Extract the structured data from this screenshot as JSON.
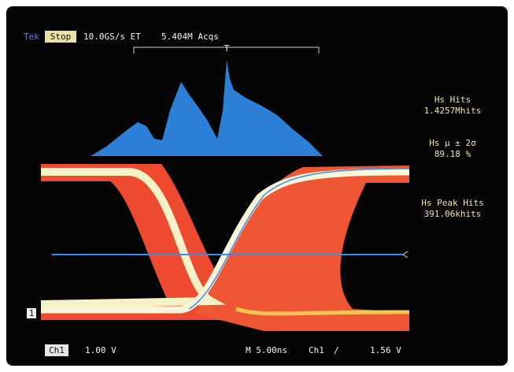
{
  "status": {
    "brand": "Tek",
    "state": "Stop",
    "sample_rate": "10.0GS/s ET",
    "acquisitions": "5.404M Acqs",
    "trigger_marker": "T"
  },
  "readouts": [
    {
      "label": "Hs Hits",
      "value": "1.4257Mhits"
    },
    {
      "label": "Hs μ ± 2σ",
      "value": "89.18 %"
    },
    {
      "label": "Hs Peak Hits",
      "value": "391.06khits"
    }
  ],
  "channel_marker": "1",
  "footer": {
    "channel": "Ch1",
    "scale": "1.00 V",
    "timebase": "M 5.00ns",
    "trigger_channel": "Ch1",
    "trigger_slope": "∕",
    "trigger_level": "1.56 V"
  }
}
